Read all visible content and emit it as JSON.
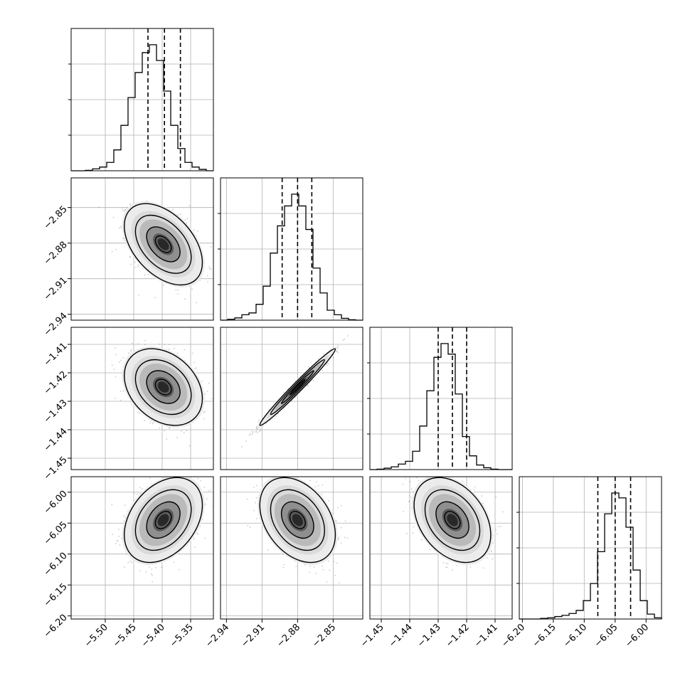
{
  "chart_data": {
    "type": "corner",
    "parameters": [
      {
        "lim": [
          -5.56,
          -5.31
        ],
        "ticks": [
          "-5.50",
          "-5.45",
          "-5.40",
          "-5.35"
        ],
        "tick_values": [
          -5.5,
          -5.45,
          -5.4,
          -5.35
        ],
        "quantiles": [
          -5.425,
          -5.396,
          -5.368
        ],
        "hist_bins": [
          -5.56,
          -5.31
        ],
        "hist_counts": [
          0,
          0,
          1,
          4,
          8,
          18,
          45,
          98,
          158,
          212,
          255,
          272,
          238,
          172,
          98,
          48,
          18,
          8,
          3,
          0
        ]
      },
      {
        "lim": [
          -2.945,
          -2.825
        ],
        "ticks": [
          "-2.94",
          "-2.91",
          "-2.88",
          "-2.85"
        ],
        "tick_values": [
          -2.94,
          -2.91,
          -2.88,
          -2.85
        ],
        "quantiles": [
          -2.893,
          -2.88,
          -2.868
        ],
        "hist_bins": [
          -2.945,
          -2.825
        ],
        "hist_counts": [
          0,
          2,
          5,
          12,
          16,
          35,
          75,
          148,
          208,
          252,
          278,
          252,
          200,
          115,
          60,
          22,
          12,
          4,
          1,
          0
        ]
      },
      {
        "lim": [
          -1.454,
          -1.404
        ],
        "ticks": [
          "-1.45",
          "-1.44",
          "-1.43",
          "-1.42",
          "-1.41"
        ],
        "tick_values": [
          -1.45,
          -1.44,
          -1.43,
          -1.42,
          -1.41
        ],
        "quantiles": [
          -1.43,
          -1.425,
          -1.42
        ],
        "hist_bins": [
          -1.454,
          -1.404
        ],
        "hist_counts": [
          0,
          1,
          3,
          6,
          12,
          18,
          40,
          95,
          172,
          245,
          275,
          252,
          165,
          72,
          30,
          10,
          4,
          1,
          0,
          0
        ]
      },
      {
        "lim": [
          -6.205,
          -5.975
        ],
        "ticks": [
          "-6.20",
          "-6.15",
          "-6.10",
          "-6.05",
          "-6.00"
        ],
        "tick_values": [
          -6.2,
          -6.15,
          -6.1,
          -6.05,
          -6.0
        ],
        "quantiles": [
          -6.078,
          -6.05,
          -6.025
        ],
        "hist_bins": [
          -6.205,
          -5.975
        ],
        "hist_counts": [
          0,
          0,
          0,
          1,
          2,
          4,
          6,
          9,
          14,
          30,
          58,
          110,
          172,
          206,
          198,
          150,
          80,
          30,
          8,
          2
        ]
      }
    ],
    "pairs": [
      {
        "x": 0,
        "y": 1,
        "center": [
          -5.398,
          -2.881
        ],
        "sigma": [
          0.028,
          0.014
        ],
        "rho": -0.45
      },
      {
        "x": 0,
        "y": 2,
        "center": [
          -5.398,
          -1.425
        ],
        "sigma": [
          0.028,
          0.0055
        ],
        "rho": -0.3
      },
      {
        "x": 1,
        "y": 2,
        "center": [
          -2.88,
          -1.425
        ],
        "sigma": [
          0.013,
          0.0055
        ],
        "rho": 0.985
      },
      {
        "x": 0,
        "y": 3,
        "center": [
          -5.398,
          -6.045
        ],
        "sigma": [
          0.028,
          0.028
        ],
        "rho": 0.35
      },
      {
        "x": 1,
        "y": 3,
        "center": [
          -2.88,
          -6.045
        ],
        "sigma": [
          0.013,
          0.028
        ],
        "rho": -0.35
      },
      {
        "x": 2,
        "y": 3,
        "center": [
          -1.425,
          -6.045
        ],
        "sigma": [
          0.0055,
          0.028
        ],
        "rho": -0.35
      }
    ],
    "grid": true,
    "quantile_line_style": "dashed",
    "point_color": "#888888",
    "contour_color": "#000000"
  }
}
